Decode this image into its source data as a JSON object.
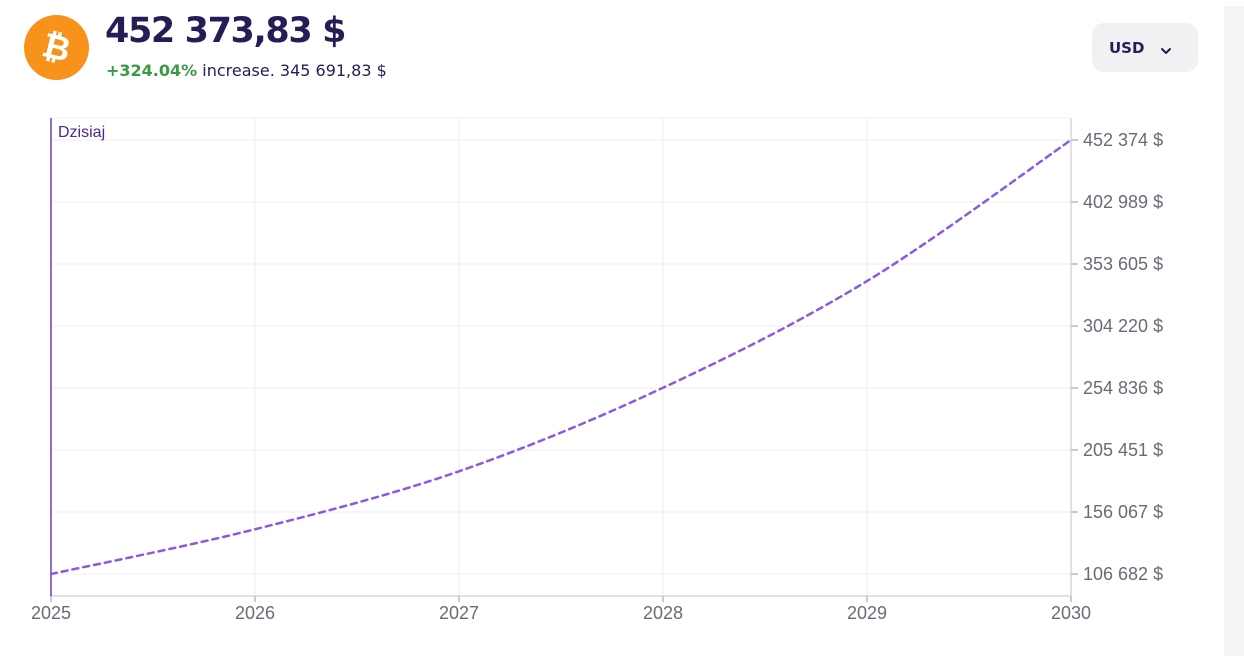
{
  "header": {
    "coin_icon": "bitcoin-icon",
    "price": "452 373,83 $",
    "change_pct": "+324.04%",
    "change_text": " increase. 345 691,83 $"
  },
  "currency_select": {
    "selected": "USD",
    "icon": "chevron-down-icon"
  },
  "colors": {
    "brand_orange": "#f7931a",
    "line": "#8a5ae0",
    "today_marker": "#6a3fbf",
    "increase_green": "#3a9a44",
    "title_navy": "#251d55"
  },
  "chart_data": {
    "type": "line",
    "today_label": "Dzisiaj",
    "x_ticks": [
      "2025",
      "2026",
      "2027",
      "2028",
      "2029",
      "2030"
    ],
    "y_ticks": [
      {
        "value": 106682,
        "label": "106 682 $"
      },
      {
        "value": 156067,
        "label": "156 067 $"
      },
      {
        "value": 205451,
        "label": "205 451 $"
      },
      {
        "value": 254836,
        "label": "254 836 $"
      },
      {
        "value": 304220,
        "label": "304 220 $"
      },
      {
        "value": 353605,
        "label": "353 605 $"
      },
      {
        "value": 402989,
        "label": "402 989 $"
      },
      {
        "value": 452374,
        "label": "452 374 $"
      }
    ],
    "xlim": [
      2025,
      2030
    ],
    "ylim": [
      106682,
      452374
    ],
    "grid": true,
    "series": [
      {
        "style": "dashed",
        "x": [
          2025,
          2026,
          2027,
          2028,
          2029,
          2030
        ],
        "values": [
          106682,
          142300,
          188500,
          255000,
          340000,
          452374
        ]
      }
    ]
  }
}
